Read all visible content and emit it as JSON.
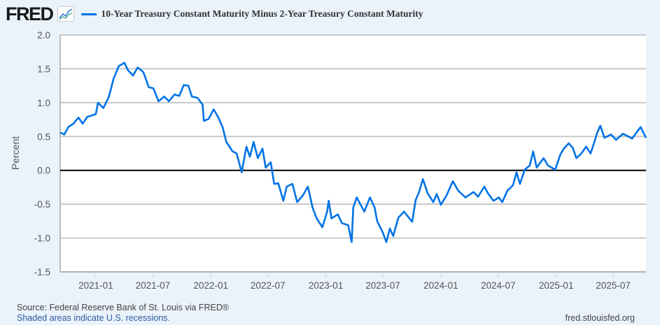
{
  "header": {
    "logo": "FRED",
    "logo_icon": "line-graph-icon",
    "legend_label": "10-Year Treasury Constant Maturity Minus 2-Year Treasury Constant Maturity"
  },
  "footer": {
    "source": "Source: Federal Reserve Bank of St. Louis via FRED®",
    "recession_note": "Shaded areas indicate U.S. recessions.",
    "site": "fred.stlouisfed.org"
  },
  "colors": {
    "series": "#0073e6",
    "zero_line": "#000000",
    "grid": "#c8c8c8",
    "background": "#eaf2fa",
    "plot": "#ffffff"
  },
  "chart_data": {
    "type": "line",
    "title": "",
    "ylabel": "Percent",
    "xlabel": "",
    "ylim": [
      -1.5,
      2.0
    ],
    "xlim": [
      "2020-09-10",
      "2025-10-13"
    ],
    "yticks": [
      "2.0",
      "1.5",
      "1.0",
      "0.5",
      "0.0",
      "-0.5",
      "-1.0",
      "-1.5"
    ],
    "xticks": [
      "2021-01",
      "2021-07",
      "2022-01",
      "2022-07",
      "2023-01",
      "2023-07",
      "2024-01",
      "2024-07",
      "2025-01",
      "2025-07"
    ],
    "grid": true,
    "legend": "top",
    "series": [
      {
        "name": "10-Year Treasury Constant Maturity Minus 2-Year Treasury Constant Maturity",
        "x": [
          "2020-09-10",
          "2020-09-23",
          "2020-10-06",
          "2020-10-22",
          "2020-11-07",
          "2020-11-20",
          "2020-12-05",
          "2021-01-01",
          "2021-01-08",
          "2021-01-25",
          "2021-02-10",
          "2021-02-17",
          "2021-02-26",
          "2021-03-15",
          "2021-04-02",
          "2021-04-13",
          "2021-04-29",
          "2021-05-14",
          "2021-06-01",
          "2021-06-18",
          "2021-07-03",
          "2021-07-19",
          "2021-08-06",
          "2021-08-21",
          "2021-09-08",
          "2021-09-23",
          "2021-10-07",
          "2021-10-22",
          "2021-11-02",
          "2021-11-20",
          "2021-12-06",
          "2021-12-10",
          "2021-12-25",
          "2022-01-10",
          "2022-01-25",
          "2022-02-08",
          "2022-02-19",
          "2022-03-11",
          "2022-03-24",
          "2022-04-09",
          "2022-04-24",
          "2022-05-05",
          "2022-05-17",
          "2022-05-30",
          "2022-06-14",
          "2022-06-24",
          "2022-07-10",
          "2022-07-21",
          "2022-08-03",
          "2022-08-19",
          "2022-08-30",
          "2022-09-17",
          "2022-10-02",
          "2022-10-20",
          "2022-11-05",
          "2022-11-20",
          "2022-12-03",
          "2022-12-21",
          "2023-01-05",
          "2023-01-10",
          "2023-01-19",
          "2023-02-08",
          "2023-02-21",
          "2023-03-13",
          "2023-03-24",
          "2023-03-29",
          "2023-04-09",
          "2023-05-03",
          "2023-05-21",
          "2023-06-05",
          "2023-06-13",
          "2023-07-01",
          "2023-07-12",
          "2023-07-23",
          "2023-08-03",
          "2023-08-19",
          "2023-09-06",
          "2023-10-02",
          "2023-10-13",
          "2023-10-24",
          "2023-11-05",
          "2023-11-20",
          "2023-12-08",
          "2023-12-19",
          "2024-01-01",
          "2024-01-19",
          "2024-02-08",
          "2024-02-25",
          "2024-03-19",
          "2024-04-14",
          "2024-04-28",
          "2024-05-18",
          "2024-05-31",
          "2024-06-16",
          "2024-07-03",
          "2024-07-14",
          "2024-07-30",
          "2024-08-17",
          "2024-08-28",
          "2024-09-08",
          "2024-09-23",
          "2024-10-09",
          "2024-10-20",
          "2024-10-31",
          "2024-11-22",
          "2024-12-06",
          "2024-12-29",
          "2025-01-14",
          "2025-01-25",
          "2025-02-10",
          "2025-02-23",
          "2025-03-06",
          "2025-03-22",
          "2025-04-06",
          "2025-04-20",
          "2025-05-01",
          "2025-05-10",
          "2025-05-21",
          "2025-06-03",
          "2025-06-24",
          "2025-07-10",
          "2025-08-01",
          "2025-08-30",
          "2025-09-26",
          "2025-10-13"
        ],
        "y": [
          0.56,
          0.53,
          0.64,
          0.69,
          0.78,
          0.69,
          0.79,
          0.83,
          1.0,
          0.92,
          1.07,
          1.18,
          1.35,
          1.54,
          1.59,
          1.48,
          1.4,
          1.52,
          1.45,
          1.23,
          1.21,
          1.02,
          1.09,
          1.02,
          1.12,
          1.1,
          1.26,
          1.25,
          1.09,
          1.07,
          0.97,
          0.73,
          0.76,
          0.9,
          0.78,
          0.63,
          0.42,
          0.28,
          0.25,
          -0.03,
          0.35,
          0.2,
          0.42,
          0.18,
          0.32,
          0.04,
          0.12,
          -0.2,
          -0.19,
          -0.45,
          -0.24,
          -0.2,
          -0.47,
          -0.37,
          -0.24,
          -0.55,
          -0.71,
          -0.84,
          -0.61,
          -0.45,
          -0.71,
          -0.65,
          -0.78,
          -0.81,
          -1.06,
          -0.55,
          -0.4,
          -0.61,
          -0.4,
          -0.55,
          -0.75,
          -0.92,
          -1.06,
          -0.86,
          -0.97,
          -0.7,
          -0.61,
          -0.76,
          -0.44,
          -0.32,
          -0.13,
          -0.34,
          -0.47,
          -0.35,
          -0.51,
          -0.37,
          -0.16,
          -0.3,
          -0.4,
          -0.32,
          -0.39,
          -0.24,
          -0.35,
          -0.45,
          -0.4,
          -0.47,
          -0.3,
          -0.22,
          -0.03,
          -0.2,
          0.01,
          0.07,
          0.28,
          0.04,
          0.18,
          0.07,
          0.01,
          0.23,
          0.32,
          0.4,
          0.33,
          0.18,
          0.25,
          0.35,
          0.25,
          0.4,
          0.54,
          0.66,
          0.48,
          0.53,
          0.45,
          0.54,
          0.47,
          0.64,
          0.48
        ]
      }
    ]
  }
}
